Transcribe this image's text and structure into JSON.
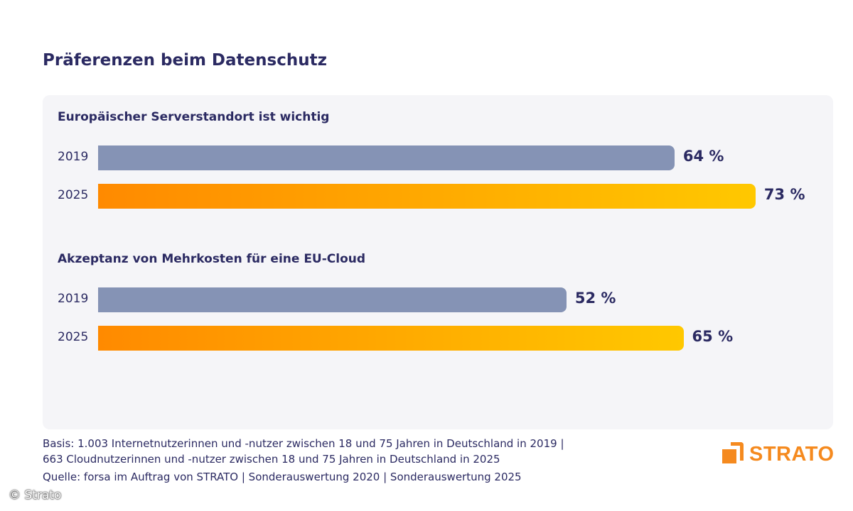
{
  "chart_data": {
    "type": "bar",
    "orientation": "horizontal",
    "title": "Präferenzen beim Datenschutz",
    "unit": "%",
    "xlim": [
      0,
      100
    ],
    "grid": false,
    "colors": {
      "2019": "#8593b5",
      "2025_start": "#ff8a00",
      "2025_end": "#ffc800",
      "text": "#2b2a62"
    },
    "groups": [
      {
        "title": "Europäischer Serverstandort ist wichtig",
        "bars": [
          {
            "year": "2019",
            "value": 64,
            "label": "64 %"
          },
          {
            "year": "2025",
            "value": 73,
            "label": "73 %"
          }
        ]
      },
      {
        "title": "Akzeptanz von Mehrkosten für eine EU-Cloud",
        "bars": [
          {
            "year": "2019",
            "value": 52,
            "label": "52 %"
          },
          {
            "year": "2025",
            "value": 65,
            "label": "65 %"
          }
        ]
      }
    ]
  },
  "footer": {
    "basis_line1": "Basis: 1.003 Internetnutzerinnen und -nutzer zwischen 18 und 75 Jahren in Deutschland in 2019 |",
    "basis_line2": "663 Cloudnutzerinnen und -nutzer zwischen 18 und 75 Jahren in Deutschland in 2025",
    "source": "Quelle: forsa im Auftrag von STRATO | Sonderauswertung 2020 | Sonderauswertung 2025"
  },
  "logo": {
    "text": "STRATO",
    "color": "#f58a1f"
  },
  "copyright": "© Strato"
}
